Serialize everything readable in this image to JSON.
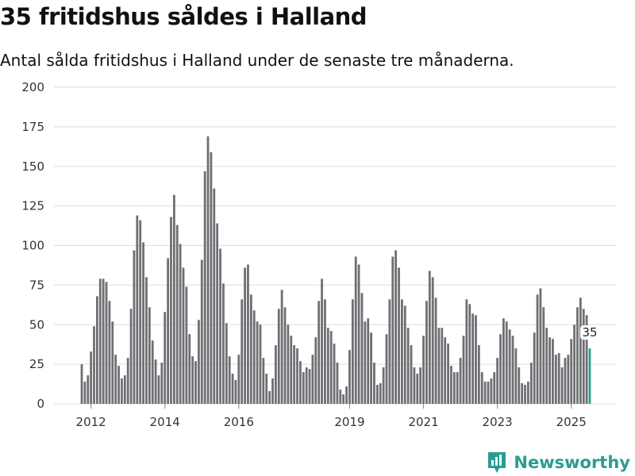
{
  "header": {
    "title": "35 fritidshus såldes i Halland",
    "subtitle": "Antal sålda fritidshus i Halland under de senaste tre månaderna."
  },
  "brand": {
    "name": "Newsworthy",
    "icon": "newsworthy-logo-icon",
    "color": "#2a9d8f"
  },
  "chart_data": {
    "type": "bar",
    "start": "2011-10",
    "frequency": "monthly",
    "ylim": [
      0,
      200
    ],
    "yticks": [
      0,
      25,
      50,
      75,
      100,
      125,
      150,
      175,
      200
    ],
    "xticks": [
      "2012",
      "2014",
      "2016",
      "2019",
      "2021",
      "2023",
      "2025"
    ],
    "grid": true,
    "bar_color": "#6e6e73",
    "highlight_color": "#2a9d8f",
    "highlight_last": true,
    "last_label": "35",
    "values": [
      25,
      14,
      18,
      33,
      49,
      68,
      79,
      79,
      77,
      65,
      52,
      31,
      24,
      16,
      18,
      29,
      60,
      97,
      119,
      116,
      102,
      80,
      61,
      40,
      28,
      18,
      26,
      58,
      92,
      118,
      132,
      113,
      101,
      86,
      74,
      44,
      30,
      27,
      53,
      91,
      147,
      169,
      159,
      136,
      114,
      98,
      76,
      51,
      30,
      19,
      15,
      31,
      66,
      86,
      88,
      69,
      59,
      52,
      50,
      29,
      19,
      8,
      16,
      37,
      60,
      72,
      61,
      50,
      43,
      37,
      35,
      27,
      20,
      23,
      22,
      31,
      42,
      65,
      79,
      66,
      48,
      46,
      38,
      26,
      9,
      6,
      11,
      34,
      66,
      93,
      88,
      70,
      52,
      54,
      45,
      26,
      12,
      13,
      23,
      44,
      66,
      93,
      97,
      86,
      66,
      62,
      48,
      37,
      23,
      19,
      23,
      43,
      65,
      84,
      80,
      67,
      48,
      48,
      42,
      38,
      24,
      20,
      20,
      29,
      43,
      66,
      63,
      57,
      56,
      37,
      20,
      14,
      14,
      16,
      20,
      29,
      44,
      54,
      52,
      47,
      43,
      35,
      23,
      13,
      12,
      14,
      26,
      45,
      69,
      73,
      61,
      48,
      42,
      41,
      31,
      32,
      23,
      29,
      31,
      41,
      50,
      61,
      67,
      60,
      56,
      35
    ]
  }
}
